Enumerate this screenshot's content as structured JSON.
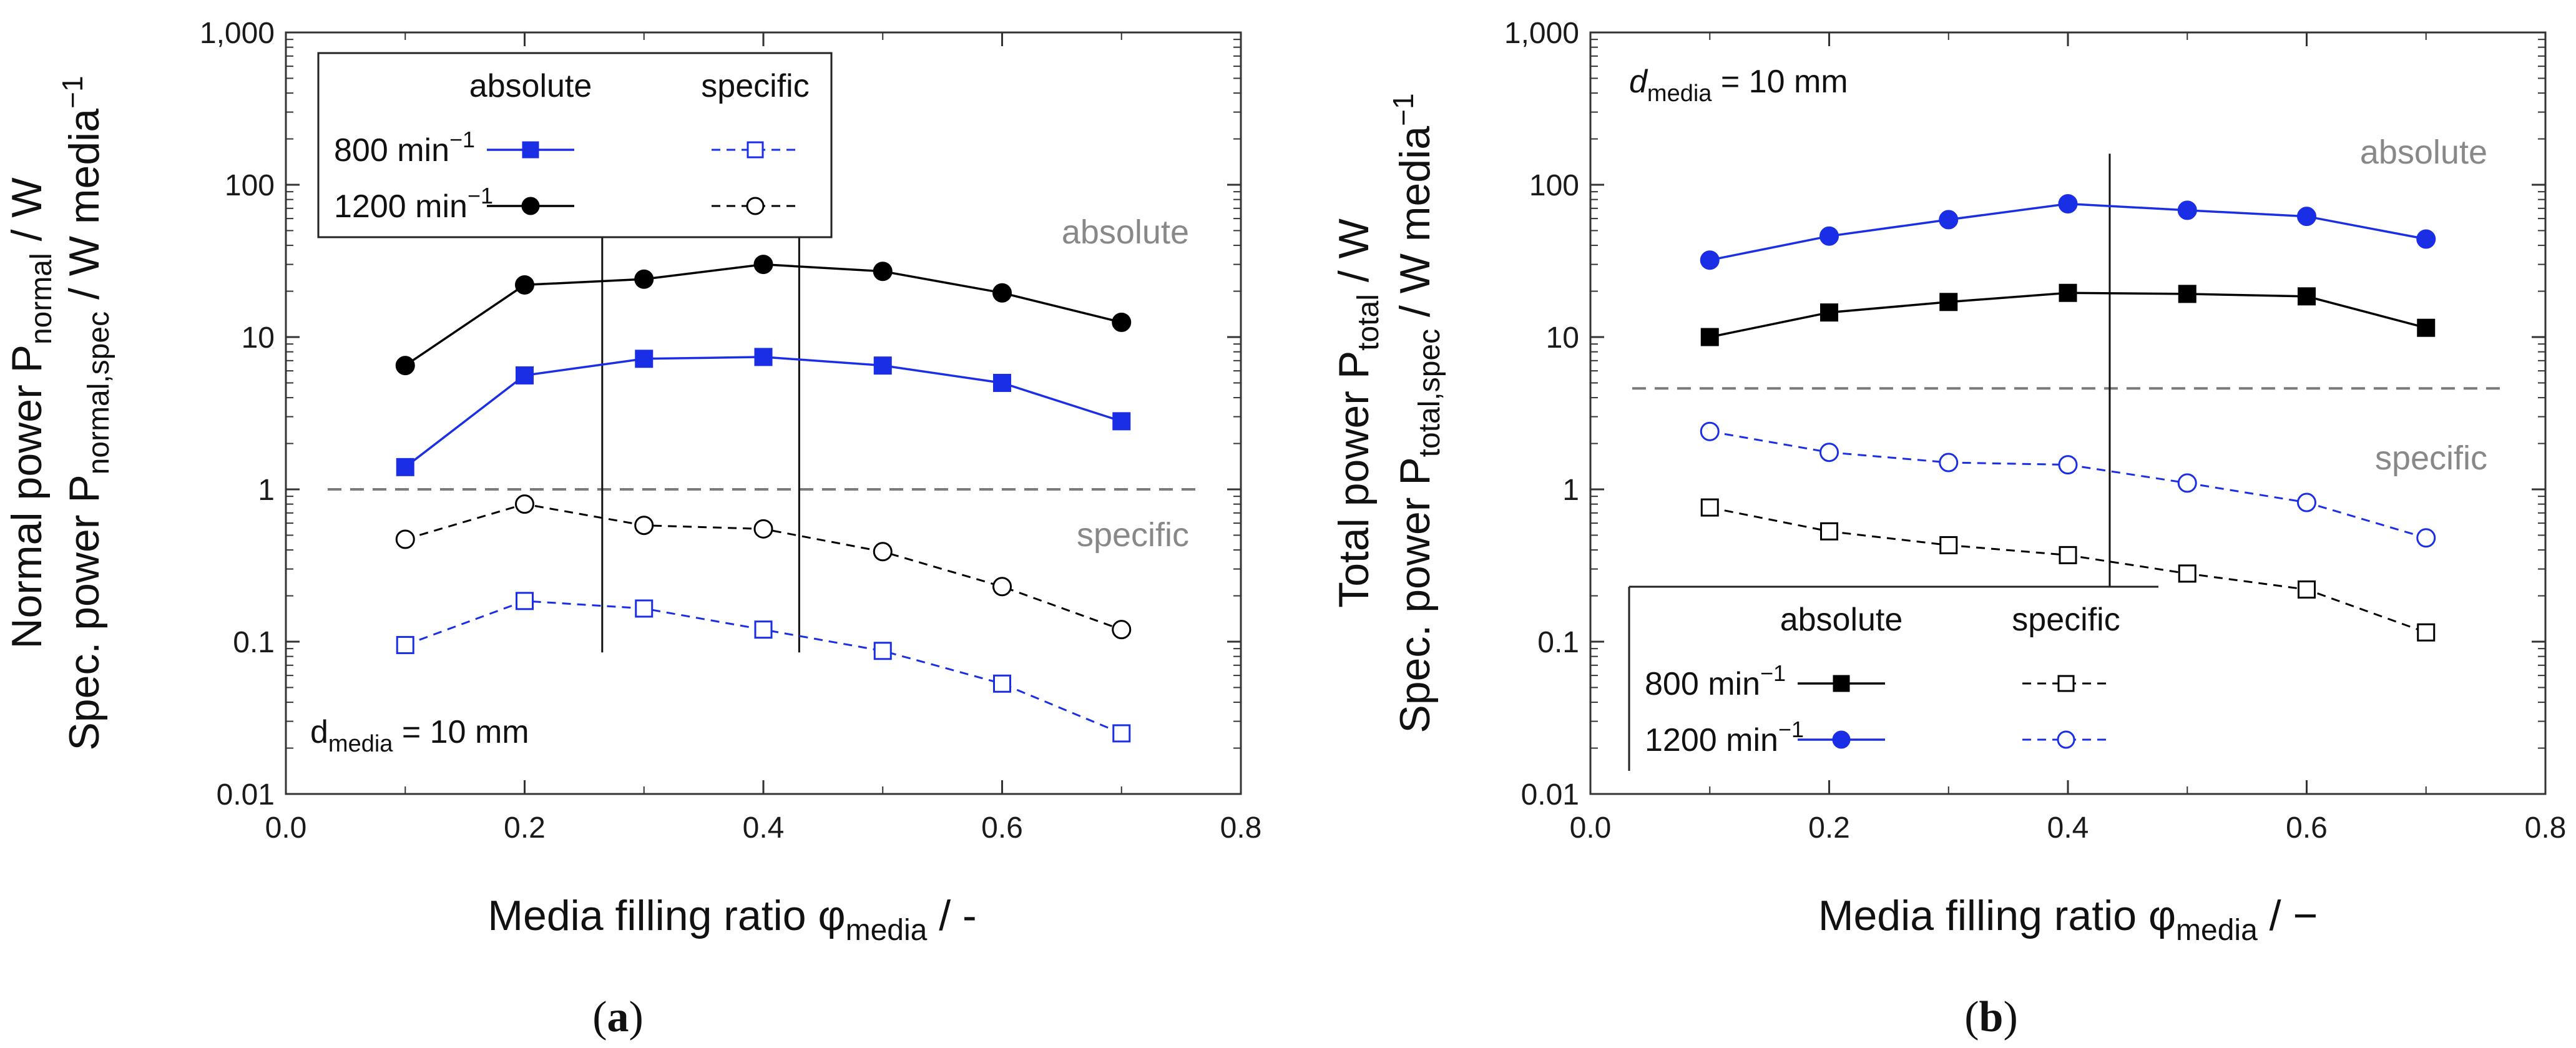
{
  "chart_data": [
    {
      "type": "line",
      "panel_label": "(a)",
      "panel_letter": "a",
      "xlabel": {
        "main": "Media filling ratio φ",
        "sub": "media",
        "tail": " / -"
      },
      "ylabel_line1": {
        "main": "Normal power P",
        "sub": "normal",
        "tail": " / W"
      },
      "ylabel_line2": {
        "main": "Spec. power P",
        "sub": "normal,spec",
        "tail": " / W media",
        "sup": "−1"
      },
      "xlim": [
        0.0,
        0.8
      ],
      "ylim": [
        0.01,
        1000
      ],
      "yscale": "log",
      "xticks": [
        "0.0",
        "0.2",
        "0.4",
        "0.6",
        "0.8"
      ],
      "yticks": [
        "0.01",
        "0.1",
        "1",
        "10",
        "100",
        "1,000"
      ],
      "separator_value": 1.0,
      "marker_lines_x": [
        0.265,
        0.43
      ],
      "region_label_absolute": "absolute",
      "region_label_specific": "specific",
      "annotation": {
        "main": "d",
        "sub": "media",
        "tail": " = 10 mm",
        "italic": false
      },
      "legend": {
        "header_absolute": "absolute",
        "header_specific": "specific",
        "rows": [
          {
            "label": "800 min",
            "sup": "−1",
            "color": "#1a2ee6",
            "marker": "square"
          },
          {
            "label": "1200 min",
            "sup": "−1",
            "color": "#000000",
            "marker": "circle"
          }
        ]
      },
      "x": [
        0.1,
        0.2,
        0.3,
        0.4,
        0.5,
        0.6,
        0.7
      ],
      "series": [
        {
          "name": "1200 min−1 absolute",
          "color": "#000000",
          "marker": "circle",
          "filled": true,
          "dashed": false,
          "values": [
            6.5,
            22,
            24,
            30,
            27,
            19.5,
            12.5
          ]
        },
        {
          "name": "800 min−1 absolute",
          "color": "#1a2ee6",
          "marker": "square",
          "filled": true,
          "dashed": false,
          "values": [
            1.4,
            5.6,
            7.2,
            7.4,
            6.5,
            5.0,
            2.8
          ]
        },
        {
          "name": "1200 min−1 specific",
          "color": "#000000",
          "marker": "circle",
          "filled": false,
          "dashed": true,
          "values": [
            0.47,
            0.8,
            0.58,
            0.55,
            0.39,
            0.23,
            0.12
          ]
        },
        {
          "name": "800 min−1 specific",
          "color": "#1a2ee6",
          "marker": "square",
          "filled": false,
          "dashed": true,
          "values": [
            0.095,
            0.185,
            0.165,
            0.12,
            0.087,
            0.053,
            0.025
          ]
        }
      ]
    },
    {
      "type": "line",
      "panel_label": "(b)",
      "panel_letter": "b",
      "xlabel": {
        "main": "Media filling ratio φ",
        "sub": "media",
        "tail": " / −"
      },
      "ylabel_line1": {
        "main": "Total power P",
        "sub": "total",
        "tail": " / W"
      },
      "ylabel_line2": {
        "main": "Spec. power P",
        "sub": "total,spec",
        "tail": " / W media",
        "sup": "−1"
      },
      "xlim": [
        0.0,
        0.8
      ],
      "ylim": [
        0.01,
        1000
      ],
      "yscale": "log",
      "xticks": [
        "0.0",
        "0.2",
        "0.4",
        "0.6",
        "0.8"
      ],
      "yticks": [
        "0.01",
        "0.1",
        "1",
        "10",
        "100",
        "1,000"
      ],
      "separator_value": 4.6,
      "marker_lines_x": [
        0.435
      ],
      "region_label_absolute": "absolute",
      "region_label_specific": "specific",
      "annotation": {
        "main": "d",
        "sub": "media",
        "tail": " = 10 mm",
        "italic": true
      },
      "legend": {
        "header_absolute": "absolute",
        "header_specific": "specific",
        "rows": [
          {
            "label": "800 min",
            "sup": "−1",
            "color": "#000000",
            "marker": "square"
          },
          {
            "label": "1200 min",
            "sup": "−1",
            "color": "#1a2ee6",
            "marker": "circle"
          }
        ]
      },
      "x": [
        0.1,
        0.2,
        0.3,
        0.4,
        0.5,
        0.6,
        0.7
      ],
      "series": [
        {
          "name": "1200 min−1 absolute",
          "color": "#1a2ee6",
          "marker": "circle",
          "filled": true,
          "dashed": false,
          "values": [
            32,
            46,
            59,
            75,
            68,
            62,
            44
          ]
        },
        {
          "name": "800 min−1 absolute",
          "color": "#000000",
          "marker": "square",
          "filled": true,
          "dashed": false,
          "values": [
            10,
            14.5,
            17,
            19.5,
            19.2,
            18.5,
            11.5
          ]
        },
        {
          "name": "1200 min−1 specific",
          "color": "#1a2ee6",
          "marker": "circle",
          "filled": false,
          "dashed": true,
          "values": [
            2.4,
            1.75,
            1.5,
            1.45,
            1.1,
            0.82,
            0.48
          ]
        },
        {
          "name": "800 min−1 specific",
          "color": "#000000",
          "marker": "square",
          "filled": false,
          "dashed": true,
          "values": [
            0.76,
            0.53,
            0.43,
            0.37,
            0.28,
            0.22,
            0.115
          ]
        }
      ]
    }
  ]
}
